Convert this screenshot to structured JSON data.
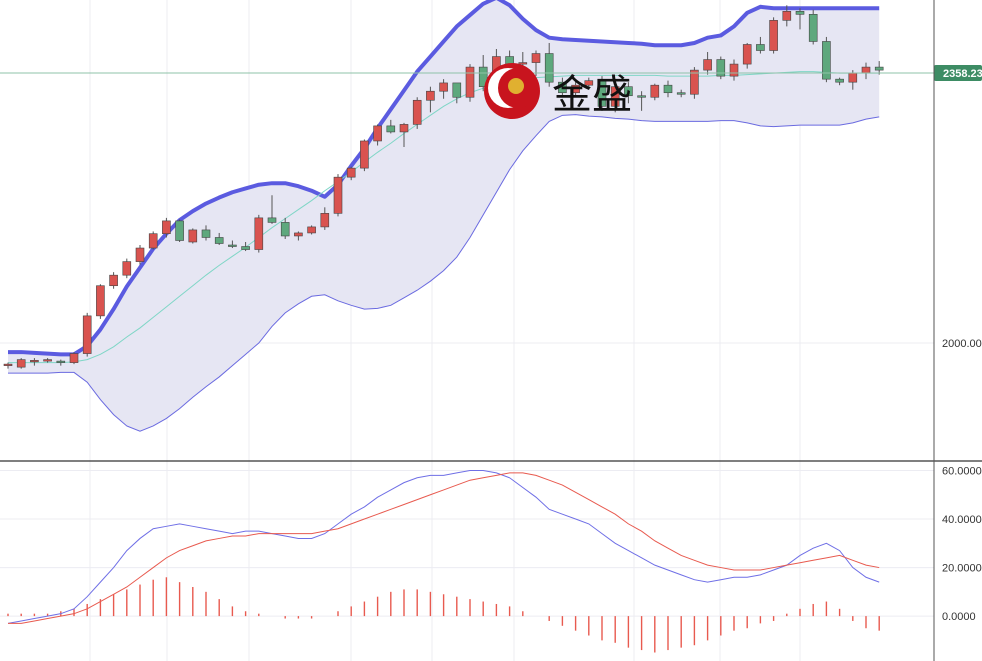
{
  "logo": {
    "text": "金盛"
  },
  "price_badge": {
    "text": "2358.23",
    "value": 2358.23,
    "color": "#3d8c64"
  },
  "colors": {
    "up": "#d9534f",
    "down": "#5ea87d",
    "band_fill": "#e6e6f3",
    "upper_band": "#5b5be0",
    "lower_band": "#6a6ae0",
    "middle_band": "#7fd6c6",
    "dif": "#6f6fe6",
    "dea": "#e85a4f",
    "hist_pos": "#e85a4f",
    "hist_neg": "#e85a4f",
    "grid": "#ececf2",
    "separator": "#333333"
  },
  "chart_data": [
    {
      "type": "candlestick",
      "panel": "price",
      "title": "",
      "yticks": [
        2000.0,
        2358.23
      ],
      "ytick_labels": [
        "2000.00",
        "2358.23"
      ],
      "ylim": [
        1843.5,
        2455.0
      ],
      "grid": true,
      "candles": [
        [
          1970,
          1974,
          1966,
          1972
        ],
        [
          1968,
          1980,
          1966,
          1978
        ],
        [
          1976,
          1980,
          1970,
          1977
        ],
        [
          1976,
          1980,
          1974,
          1978
        ],
        [
          1976,
          1978,
          1970,
          1975
        ],
        [
          1974,
          1988,
          1972,
          1986
        ],
        [
          1986,
          2040,
          1982,
          2036
        ],
        [
          2036,
          2078,
          2032,
          2076
        ],
        [
          2076,
          2094,
          2072,
          2090
        ],
        [
          2090,
          2112,
          2086,
          2108
        ],
        [
          2108,
          2130,
          2104,
          2126
        ],
        [
          2126,
          2148,
          2124,
          2145
        ],
        [
          2145,
          2166,
          2140,
          2162
        ],
        [
          2162,
          2164,
          2134,
          2136
        ],
        [
          2134,
          2152,
          2132,
          2150
        ],
        [
          2150,
          2156,
          2136,
          2140
        ],
        [
          2140,
          2146,
          2130,
          2132
        ],
        [
          2130,
          2136,
          2126,
          2128
        ],
        [
          2128,
          2134,
          2122,
          2124
        ],
        [
          2124,
          2170,
          2120,
          2166
        ],
        [
          2166,
          2196,
          2158,
          2160
        ],
        [
          2160,
          2166,
          2138,
          2142
        ],
        [
          2142,
          2148,
          2136,
          2146
        ],
        [
          2146,
          2156,
          2144,
          2154
        ],
        [
          2154,
          2180,
          2150,
          2172
        ],
        [
          2172,
          2224,
          2168,
          2220
        ],
        [
          2220,
          2234,
          2216,
          2232
        ],
        [
          2232,
          2270,
          2228,
          2268
        ],
        [
          2268,
          2290,
          2262,
          2288
        ],
        [
          2288,
          2296,
          2278,
          2280
        ],
        [
          2280,
          2292,
          2260,
          2290
        ],
        [
          2290,
          2326,
          2284,
          2322
        ],
        [
          2322,
          2340,
          2306,
          2334
        ],
        [
          2334,
          2350,
          2324,
          2345
        ],
        [
          2345,
          2340,
          2318,
          2326
        ],
        [
          2326,
          2370,
          2320,
          2366
        ],
        [
          2366,
          2382,
          2334,
          2340
        ],
        [
          2340,
          2390,
          2336,
          2380
        ],
        [
          2380,
          2388,
          2340,
          2370
        ],
        [
          2370,
          2386,
          2350,
          2372
        ],
        [
          2372,
          2388,
          2354,
          2384
        ],
        [
          2384,
          2398,
          2340,
          2346
        ],
        [
          2346,
          2352,
          2326,
          2332
        ],
        [
          2332,
          2348,
          2326,
          2342
        ],
        [
          2342,
          2352,
          2336,
          2348
        ],
        [
          2348,
          2354,
          2308,
          2314
        ],
        [
          2314,
          2346,
          2306,
          2340
        ],
        [
          2340,
          2346,
          2318,
          2328
        ],
        [
          2328,
          2334,
          2308,
          2326
        ],
        [
          2326,
          2344,
          2322,
          2342
        ],
        [
          2342,
          2348,
          2326,
          2332
        ],
        [
          2332,
          2336,
          2326,
          2330
        ],
        [
          2330,
          2366,
          2324,
          2362
        ],
        [
          2362,
          2386,
          2356,
          2376
        ],
        [
          2376,
          2380,
          2350,
          2354
        ],
        [
          2354,
          2376,
          2348,
          2370
        ],
        [
          2370,
          2398,
          2364,
          2396
        ],
        [
          2396,
          2406,
          2384,
          2388
        ],
        [
          2388,
          2432,
          2384,
          2428
        ],
        [
          2428,
          2448,
          2420,
          2440
        ],
        [
          2440,
          2444,
          2416,
          2436
        ],
        [
          2436,
          2442,
          2396,
          2400
        ],
        [
          2400,
          2406,
          2346,
          2350
        ],
        [
          2350,
          2352,
          2342,
          2346
        ],
        [
          2346,
          2362,
          2336,
          2358
        ],
        [
          2358,
          2372,
          2350,
          2366
        ],
        [
          2366,
          2374,
          2356,
          2362
        ]
      ],
      "bollinger": {
        "upper": [
          1988,
          1988,
          1987,
          1986,
          1985,
          1985,
          1996,
          2018,
          2045,
          2075,
          2100,
          2125,
          2145,
          2163,
          2175,
          2185,
          2193,
          2200,
          2205,
          2210,
          2212,
          2212,
          2208,
          2202,
          2194,
          2210,
          2235,
          2258,
          2285,
          2310,
          2335,
          2360,
          2380,
          2400,
          2420,
          2435,
          2450,
          2458,
          2448,
          2430,
          2415,
          2405,
          2403,
          2402,
          2401,
          2400,
          2399,
          2398,
          2397,
          2395,
          2395,
          2395,
          2398,
          2405,
          2408,
          2420,
          2438,
          2446,
          2444,
          2444,
          2444,
          2444,
          2444,
          2444,
          2444,
          2444,
          2444
        ],
        "middle": [
          1974,
          1974,
          1974,
          1974,
          1974,
          1975,
          1978,
          1985,
          1995,
          2008,
          2020,
          2034,
          2048,
          2062,
          2076,
          2090,
          2103,
          2115,
          2127,
          2140,
          2153,
          2165,
          2177,
          2189,
          2202,
          2214,
          2227,
          2240,
          2253,
          2265,
          2278,
          2290,
          2302,
          2314,
          2324,
          2332,
          2338,
          2343,
          2347,
          2350,
          2352,
          2353,
          2354,
          2355,
          2355,
          2355,
          2355,
          2355,
          2355,
          2355,
          2354,
          2354,
          2354,
          2354,
          2355,
          2355,
          2356,
          2357,
          2358,
          2359,
          2360,
          2360,
          2359,
          2358,
          2358,
          2358,
          2358
        ],
        "lower": [
          1960,
          1960,
          1960,
          1960,
          1961,
          1961,
          1948,
          1925,
          1905,
          1890,
          1883,
          1890,
          1900,
          1913,
          1928,
          1942,
          1955,
          1970,
          1985,
          2000,
          2022,
          2040,
          2052,
          2062,
          2064,
          2056,
          2050,
          2045,
          2046,
          2050,
          2060,
          2070,
          2082,
          2096,
          2114,
          2140,
          2170,
          2200,
          2230,
          2255,
          2275,
          2294,
          2302,
          2303,
          2301,
          2300,
          2298,
          2297,
          2295,
          2294,
          2294,
          2294,
          2294,
          2294,
          2295,
          2295,
          2292,
          2288,
          2287,
          2288,
          2289,
          2289,
          2289,
          2289,
          2292,
          2297,
          2300
        ]
      }
    },
    {
      "type": "line",
      "panel": "macd",
      "title": "",
      "yticks": [
        0,
        20,
        40,
        60
      ],
      "ytick_labels": [
        "0.0000",
        "20.0000",
        "40.0000",
        "60.0000"
      ],
      "ylim": [
        -18.5,
        63.5
      ],
      "series": [
        {
          "id": "dif",
          "values": [
            -3,
            -2,
            -1,
            0,
            1,
            3,
            8,
            14,
            20,
            27,
            32,
            36,
            37,
            38,
            37,
            36,
            35,
            34,
            35,
            35,
            34,
            33,
            32,
            32,
            34,
            38,
            42,
            45,
            49,
            52,
            55,
            57,
            58,
            58,
            59,
            60,
            60,
            59,
            57,
            53,
            49,
            44,
            42,
            40,
            38,
            34,
            30,
            27,
            24,
            21,
            19,
            17,
            15,
            14,
            15,
            16,
            16,
            17,
            19,
            21,
            25,
            28,
            30,
            27,
            20,
            16,
            14
          ],
          "dea": [
            -3,
            -3,
            -2,
            -1,
            0,
            1,
            3,
            6,
            9,
            12,
            16,
            20,
            24,
            27,
            29,
            31,
            32,
            33,
            33,
            34,
            34,
            34,
            34,
            34,
            35,
            36,
            38,
            40,
            42,
            44,
            46,
            48,
            50,
            52,
            54,
            56,
            57,
            58,
            59,
            59,
            58,
            56,
            54,
            51,
            48,
            45,
            42,
            38,
            35,
            31,
            28,
            25,
            23,
            21,
            20,
            19,
            19,
            19,
            20,
            21,
            22,
            23,
            24,
            25,
            23,
            21,
            20
          ]
        }
      ],
      "histogram": [
        1,
        1,
        1,
        1,
        2,
        3,
        5,
        7,
        9,
        11,
        13,
        15,
        16,
        14,
        12,
        10,
        7,
        4,
        2,
        1,
        0,
        -1,
        -1,
        -1,
        0,
        2,
        4,
        6,
        8,
        10,
        11,
        11,
        10,
        9,
        8,
        7,
        6,
        5,
        4,
        2,
        0,
        -2,
        -4,
        -6,
        -8,
        -10,
        -11,
        -13,
        -14,
        -15,
        -14,
        -13,
        -12,
        -10,
        -8,
        -6,
        -5,
        -3,
        -2,
        1,
        3,
        5,
        6,
        3,
        -2,
        -5,
        -6
      ]
    }
  ]
}
